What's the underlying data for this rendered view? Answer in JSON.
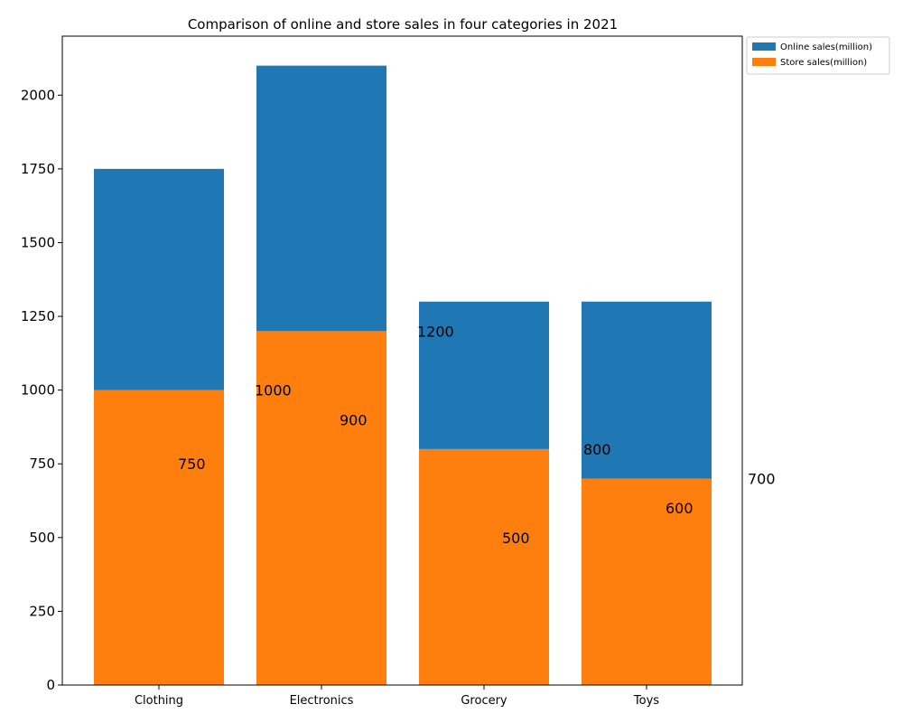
{
  "chart_data": {
    "type": "bar",
    "stacked": true,
    "title": "Comparison of online and store sales in four categories in 2021",
    "xlabel": "",
    "ylabel": "",
    "categories": [
      "Clothing",
      "Electronics",
      "Grocery",
      "Toys"
    ],
    "series": [
      {
        "name": "Online sales(million)",
        "values": [
          750,
          900,
          500,
          600
        ],
        "color": "#1f77b4"
      },
      {
        "name": "Store sales(million)",
        "values": [
          1000,
          1200,
          800,
          700
        ],
        "color": "#ff7f0e"
      }
    ],
    "ylim": [
      0,
      2200
    ],
    "yticks": [
      0,
      250,
      500,
      750,
      1000,
      1250,
      1500,
      1750,
      2000
    ],
    "grid": false,
    "legend_position": "outside top-right",
    "annotations": [
      {
        "text": "750",
        "category": "Clothing",
        "y": 750
      },
      {
        "text": "1000",
        "category": "Electronics",
        "y": 1000
      },
      {
        "text": "900",
        "category": "Electronics",
        "y": 900
      },
      {
        "text": "1200",
        "category": "Grocery",
        "y": 1200
      },
      {
        "text": "500",
        "category": "Grocery",
        "y": 500
      },
      {
        "text": "800",
        "category": "Toys",
        "y": 800
      },
      {
        "text": "600",
        "category": "Toys",
        "y": 600
      },
      {
        "text": "700",
        "category": "beyond Toys",
        "y": 700
      }
    ]
  }
}
